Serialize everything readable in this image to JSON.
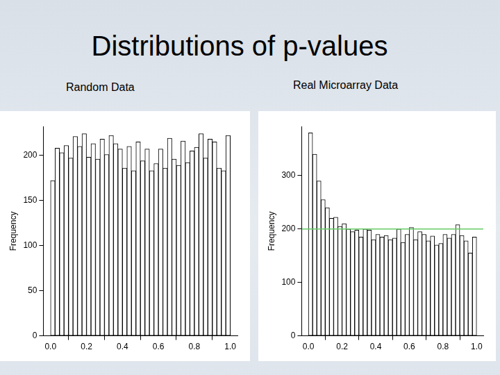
{
  "page": {
    "title": "Distributions of p-values"
  },
  "chart_data": [
    {
      "type": "histogram",
      "title": "Random Data",
      "y_label": "Frequency",
      "bins": [
        0,
        0.025,
        0.05,
        0.075,
        0.1,
        0.125,
        0.15,
        0.175,
        0.2,
        0.225,
        0.25,
        0.275,
        0.3,
        0.325,
        0.35,
        0.375,
        0.4,
        0.425,
        0.45,
        0.475,
        0.5,
        0.525,
        0.55,
        0.575,
        0.6,
        0.625,
        0.65,
        0.675,
        0.7,
        0.725,
        0.75,
        0.775,
        0.8,
        0.825,
        0.85,
        0.875,
        0.9,
        0.925,
        0.95,
        0.975,
        1.0
      ],
      "values": [
        172,
        208,
        203,
        211,
        197,
        221,
        210,
        224,
        198,
        213,
        196,
        218,
        201,
        222,
        213,
        207,
        186,
        210,
        183,
        215,
        194,
        207,
        183,
        191,
        207,
        186,
        219,
        196,
        189,
        216,
        192,
        205,
        209,
        224,
        197,
        218,
        215,
        186,
        183,
        222
      ],
      "color": "#ffffff",
      "xlim": [
        -0.04,
        1.04
      ],
      "xticks": [
        {
          "value": 0,
          "label": "0.0"
        },
        {
          "value": 0.2,
          "label": "0.2"
        },
        {
          "value": 0.4,
          "label": "0.4"
        },
        {
          "value": 0.6,
          "label": "0.6"
        },
        {
          "value": 0.8,
          "label": "0.8"
        },
        {
          "value": 1,
          "label": "1.0"
        }
      ],
      "ylim": [
        0,
        232
      ],
      "yticks": [
        0,
        50,
        100,
        150,
        200
      ],
      "grid": false
    },
    {
      "type": "histogram",
      "title": "Real Microarray Data",
      "y_label": "Frequency",
      "bins": [
        0,
        0.025,
        0.05,
        0.075,
        0.1,
        0.125,
        0.15,
        0.175,
        0.2,
        0.225,
        0.25,
        0.275,
        0.3,
        0.325,
        0.35,
        0.375,
        0.4,
        0.425,
        0.45,
        0.475,
        0.5,
        0.525,
        0.55,
        0.575,
        0.6,
        0.625,
        0.65,
        0.675,
        0.7,
        0.725,
        0.75,
        0.775,
        0.8,
        0.825,
        0.85,
        0.875,
        0.9,
        0.925,
        0.95,
        0.975,
        1.0
      ],
      "values": [
        380,
        340,
        290,
        255,
        240,
        220,
        222,
        205,
        210,
        200,
        195,
        198,
        185,
        200,
        198,
        180,
        190,
        185,
        188,
        180,
        183,
        200,
        175,
        190,
        203,
        180,
        195,
        190,
        178,
        187,
        170,
        173,
        190,
        183,
        190,
        208,
        188,
        178,
        155,
        185
      ],
      "color": "#ffffff",
      "xlim": [
        -0.04,
        1.04
      ],
      "xticks": [
        {
          "value": 0,
          "label": "0.0"
        },
        {
          "value": 0.2,
          "label": "0.2"
        },
        {
          "value": 0.4,
          "label": "0.4"
        },
        {
          "value": 0.6,
          "label": "0.6"
        },
        {
          "value": 0.8,
          "label": "0.8"
        },
        {
          "value": 1,
          "label": "1.0"
        }
      ],
      "ylim": [
        0,
        392
      ],
      "yticks": [
        0,
        100,
        200,
        300
      ],
      "reference_line": {
        "value": 200,
        "color": "#66cc66"
      },
      "grid": false
    }
  ]
}
